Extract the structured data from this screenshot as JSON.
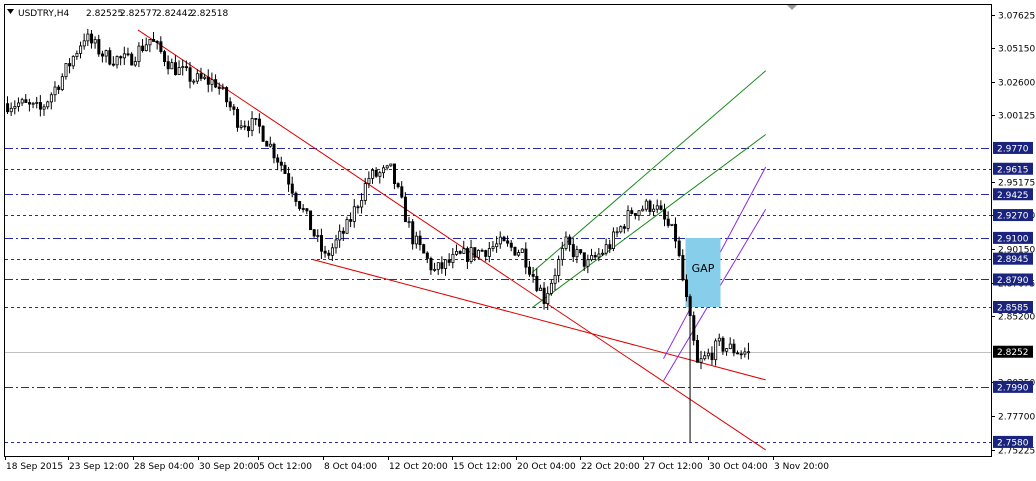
{
  "header": {
    "symbol": "USDTRY,H4",
    "open": "2.82525",
    "high": "2.82577",
    "low": "2.82442",
    "close": "2.82518"
  },
  "chart_data": {
    "type": "candlestick",
    "symbol": "USDTRY",
    "timeframe": "H4",
    "ylim": [
      2.7475,
      3.0835
    ],
    "y_ticks": [
      3.07625,
      3.0515,
      3.026,
      3.00125,
      2.95175,
      2.927,
      2.9015,
      2.87675,
      2.852,
      2.8025,
      2.777,
      2.75225
    ],
    "x_tick_labels": [
      "18 Sep 2015",
      "23 Sep 12:00",
      "28 Sep 04:00",
      "30 Sep 20:00",
      "5 Oct 12:00",
      "8 Oct 04:00",
      "12 Oct 20:00",
      "15 Oct 12:00",
      "20 Oct 04:00",
      "22 Oct 20:00",
      "27 Oct 12:00",
      "30 Oct 04:00",
      "3 Nov 20:00"
    ],
    "last_price": 2.82518,
    "levels": [
      2.977,
      2.9615,
      2.9425,
      2.927,
      2.91,
      2.8945,
      2.879,
      2.8585,
      2.799,
      2.758
    ],
    "annotations": [
      {
        "text": "GAP",
        "from_price": 2.91,
        "to_price": 2.8585
      }
    ],
    "trendlines": [
      {
        "color": "red",
        "points": [
          [
            "28 Sep",
            3.0649
          ],
          [
            "6 Nov",
            2.752
          ]
        ]
      },
      {
        "color": "red",
        "points": [
          [
            "8 Oct",
            2.8938
          ],
          [
            "6 Nov",
            2.8042
          ]
        ]
      },
      {
        "color": "green",
        "points": [
          [
            "22 Oct",
            2.8842
          ],
          [
            "6 Nov",
            3.0345
          ]
        ]
      },
      {
        "color": "green",
        "points": [
          [
            "22 Oct",
            2.858
          ],
          [
            "6 Nov",
            2.987
          ]
        ]
      },
      {
        "color": "purple",
        "points": [
          [
            "30 Oct",
            2.82
          ],
          [
            "6 Nov",
            2.9628
          ]
        ]
      },
      {
        "color": "purple",
        "points": [
          [
            "30 Oct",
            2.8036
          ],
          [
            "6 Nov",
            2.9313
          ]
        ]
      }
    ]
  },
  "colors": {
    "candle": "#000000",
    "level_line": "#2a2aa0",
    "price_label_bg": "#1a237e",
    "red_line": "#dd0000",
    "green_line": "#1a8a1a",
    "purple_line": "#8a2be2",
    "gap_box": "#87ceeb"
  },
  "icons": {
    "dropdown": "triangle-down-icon"
  }
}
